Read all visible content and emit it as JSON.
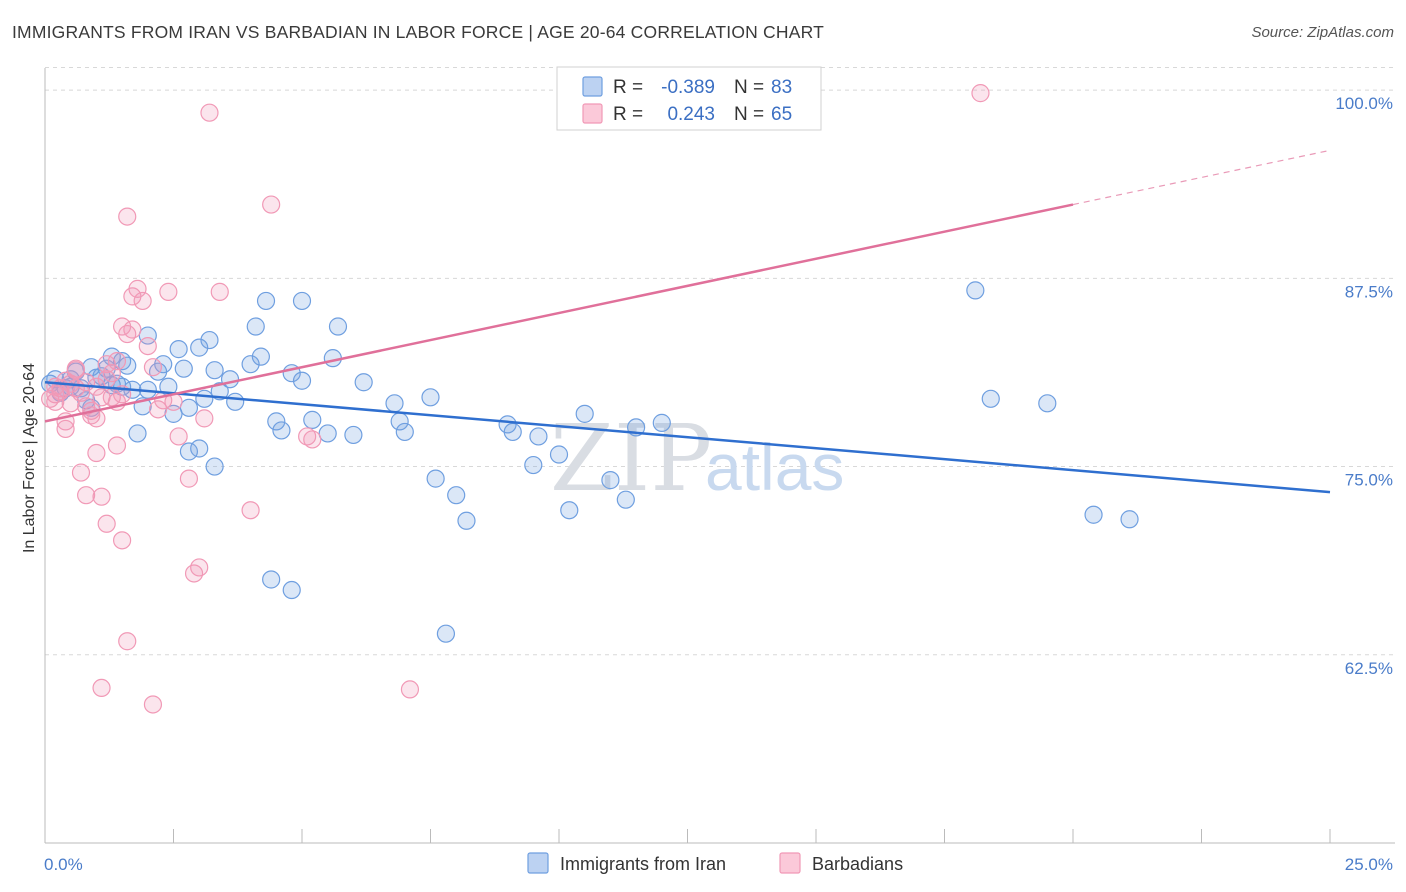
{
  "title": "IMMIGRANTS FROM IRAN VS BARBADIAN IN LABOR FORCE | AGE 20-64 CORRELATION CHART",
  "source": "Source: ZipAtlas.com",
  "watermark": {
    "zip": "ZIP",
    "atlas": "atlas"
  },
  "colors": {
    "blue": "#6f9fe0",
    "blue_line": "#2f6fcf",
    "pink": "#f199b6",
    "pink_line": "#e0709a",
    "grid": "#d8d8d8"
  },
  "legend": {
    "r_label": "R =",
    "n_label": "N =",
    "rows": [
      {
        "r": "-0.389",
        "n": "83"
      },
      {
        "r": "0.243",
        "n": "65"
      }
    ]
  },
  "chart_data": {
    "type": "scatter",
    "title": "IMMIGRANTS FROM IRAN VS BARBADIAN IN LABOR FORCE | AGE 20-64 CORRELATION CHART",
    "xlabel": "",
    "ylabel": "In Labor Force | Age 20-64",
    "xlim": [
      0,
      25
    ],
    "ylim": [
      50,
      102
    ],
    "x_tick_labels": [
      "0.0%",
      "25.0%"
    ],
    "y_ticks": [
      62.5,
      75.0,
      87.5,
      100.0
    ],
    "y_tick_labels": [
      "62.5%",
      "75.0%",
      "87.5%",
      "100.0%"
    ],
    "grid": true,
    "legend_position": "top-center",
    "series": [
      {
        "name": "Immigrants from Iran",
        "color": "#6f9fe0",
        "r": -0.389,
        "n": 83,
        "trend": {
          "x": [
            0,
            25
          ],
          "y": [
            80.6,
            73.3
          ]
        },
        "points": [
          [
            0.1,
            80.5
          ],
          [
            0.2,
            80.8
          ],
          [
            0.3,
            79.9
          ],
          [
            0.4,
            80.2
          ],
          [
            0.5,
            80.8
          ],
          [
            0.6,
            81.3
          ],
          [
            0.7,
            80.2
          ],
          [
            0.8,
            79.4
          ],
          [
            0.9,
            81.6
          ],
          [
            1.0,
            80.9
          ],
          [
            1.1,
            81.0
          ],
          [
            1.2,
            81.5
          ],
          [
            1.3,
            80.4
          ],
          [
            1.4,
            80.5
          ],
          [
            1.5,
            82.0
          ],
          [
            1.6,
            81.7
          ],
          [
            1.7,
            80.1
          ],
          [
            1.8,
            77.2
          ],
          [
            1.9,
            79.0
          ],
          [
            2.0,
            83.7
          ],
          [
            2.2,
            81.3
          ],
          [
            2.3,
            81.8
          ],
          [
            2.4,
            80.3
          ],
          [
            2.5,
            78.5
          ],
          [
            2.7,
            81.5
          ],
          [
            2.6,
            82.8
          ],
          [
            2.8,
            78.9
          ],
          [
            3.0,
            82.9
          ],
          [
            3.1,
            79.5
          ],
          [
            3.2,
            83.4
          ],
          [
            3.3,
            81.4
          ],
          [
            3.4,
            80.0
          ],
          [
            3.6,
            80.8
          ],
          [
            3.7,
            79.3
          ],
          [
            4.0,
            81.8
          ],
          [
            4.2,
            82.3
          ],
          [
            4.1,
            84.3
          ],
          [
            4.5,
            78.0
          ],
          [
            4.6,
            77.4
          ],
          [
            4.8,
            81.2
          ],
          [
            5.0,
            80.7
          ],
          [
            5.2,
            78.1
          ],
          [
            5.5,
            77.2
          ],
          [
            5.7,
            84.3
          ],
          [
            6.0,
            77.1
          ],
          [
            6.2,
            80.6
          ],
          [
            6.8,
            79.2
          ],
          [
            6.9,
            78.0
          ],
          [
            7.0,
            77.3
          ],
          [
            7.5,
            79.6
          ],
          [
            7.6,
            74.2
          ],
          [
            8.0,
            73.1
          ],
          [
            8.2,
            71.4
          ],
          [
            9.0,
            77.8
          ],
          [
            9.1,
            77.3
          ],
          [
            9.5,
            75.1
          ],
          [
            9.6,
            77.0
          ],
          [
            10.0,
            75.8
          ],
          [
            10.2,
            72.1
          ],
          [
            10.5,
            78.5
          ],
          [
            11.0,
            74.1
          ],
          [
            11.3,
            72.8
          ],
          [
            11.5,
            77.6
          ],
          [
            12.0,
            77.9
          ],
          [
            18.4,
            79.5
          ],
          [
            19.5,
            79.2
          ],
          [
            18.1,
            86.7
          ],
          [
            20.4,
            71.8
          ],
          [
            21.1,
            71.5
          ],
          [
            4.4,
            67.5
          ],
          [
            4.8,
            66.8
          ],
          [
            7.8,
            63.9
          ],
          [
            5.0,
            86.0
          ],
          [
            4.3,
            86.0
          ],
          [
            3.0,
            76.2
          ],
          [
            3.3,
            75.0
          ],
          [
            2.8,
            76.0
          ],
          [
            1.5,
            80.3
          ],
          [
            0.9,
            78.9
          ],
          [
            1.3,
            82.3
          ],
          [
            0.5,
            80.3
          ],
          [
            2.0,
            80.1
          ],
          [
            5.6,
            82.2
          ]
        ]
      },
      {
        "name": "Barbadians",
        "color": "#f199b6",
        "r": 0.243,
        "n": 65,
        "trend": {
          "x": [
            0,
            20
          ],
          "y": [
            78.0,
            92.4
          ]
        },
        "trend_dashed": {
          "x": [
            20,
            25
          ],
          "y": [
            92.4,
            96.0
          ]
        },
        "points": [
          [
            0.1,
            79.5
          ],
          [
            0.2,
            79.8
          ],
          [
            0.3,
            80.2
          ],
          [
            0.4,
            78.0
          ],
          [
            0.5,
            80.5
          ],
          [
            0.6,
            81.4
          ],
          [
            0.7,
            79.9
          ],
          [
            0.8,
            80.6
          ],
          [
            0.9,
            78.7
          ],
          [
            1.0,
            78.2
          ],
          [
            1.1,
            79.6
          ],
          [
            1.2,
            81.8
          ],
          [
            1.3,
            81.2
          ],
          [
            1.4,
            79.3
          ],
          [
            1.5,
            84.3
          ],
          [
            1.6,
            83.8
          ],
          [
            1.7,
            86.3
          ],
          [
            1.8,
            86.8
          ],
          [
            1.9,
            86.0
          ],
          [
            2.0,
            83.0
          ],
          [
            2.1,
            81.6
          ],
          [
            2.2,
            78.8
          ],
          [
            2.3,
            79.4
          ],
          [
            2.4,
            86.6
          ],
          [
            2.5,
            79.3
          ],
          [
            0.2,
            79.3
          ],
          [
            0.4,
            77.5
          ],
          [
            0.6,
            80.2
          ],
          [
            0.7,
            74.6
          ],
          [
            0.8,
            73.1
          ],
          [
            0.9,
            78.4
          ],
          [
            1.0,
            75.9
          ],
          [
            1.1,
            73.0
          ],
          [
            1.2,
            71.2
          ],
          [
            1.3,
            79.6
          ],
          [
            1.4,
            76.4
          ],
          [
            1.5,
            70.1
          ],
          [
            1.6,
            63.4
          ],
          [
            1.1,
            60.3
          ],
          [
            1.6,
            91.6
          ],
          [
            2.1,
            59.2
          ],
          [
            2.8,
            74.2
          ],
          [
            2.9,
            67.9
          ],
          [
            3.0,
            68.3
          ],
          [
            3.1,
            78.2
          ],
          [
            3.2,
            98.5
          ],
          [
            4.4,
            92.4
          ],
          [
            4.0,
            72.1
          ],
          [
            5.1,
            77.0
          ],
          [
            5.2,
            76.8
          ],
          [
            7.1,
            60.2
          ],
          [
            18.2,
            99.8
          ],
          [
            0.3,
            80.0
          ],
          [
            0.5,
            79.2
          ],
          [
            0.6,
            81.5
          ],
          [
            0.8,
            79.0
          ],
          [
            1.0,
            80.3
          ],
          [
            1.2,
            80.8
          ],
          [
            1.4,
            82.0
          ],
          [
            1.5,
            79.8
          ],
          [
            0.2,
            80.3
          ],
          [
            0.4,
            80.7
          ],
          [
            2.6,
            77.0
          ],
          [
            3.4,
            86.6
          ],
          [
            1.7,
            84.1
          ]
        ]
      }
    ]
  },
  "bottom_legend": {
    "items": [
      {
        "label": "Immigrants from Iran"
      },
      {
        "label": "Barbadians"
      }
    ]
  }
}
